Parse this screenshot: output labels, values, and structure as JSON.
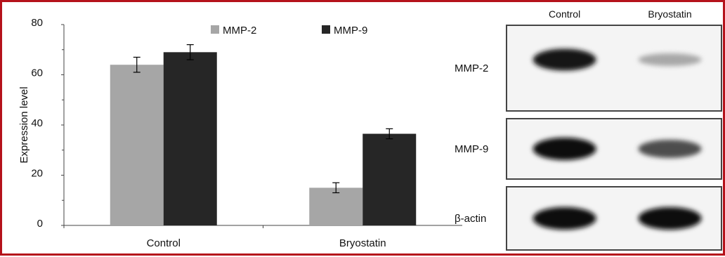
{
  "chart_data": {
    "type": "bar",
    "categories": [
      "Control",
      "Bryostatin"
    ],
    "ylabel": "Expression level",
    "ylim": [
      0,
      80
    ],
    "yticks": [
      0,
      20,
      40,
      60,
      80
    ],
    "legend_position": "top-center",
    "grid": false,
    "series": [
      {
        "name": "MMP-2",
        "color": "#a6a6a6",
        "values": [
          64,
          15
        ],
        "errors": [
          3,
          2
        ]
      },
      {
        "name": "MMP-9",
        "color": "#262626",
        "values": [
          69,
          36.5
        ],
        "errors": [
          3,
          2
        ]
      }
    ]
  },
  "blot": {
    "columns": [
      "Control",
      "Bryostatin"
    ],
    "rows": [
      {
        "label": "MMP-2",
        "intensity": [
          0.95,
          0.3
        ]
      },
      {
        "label": "MMP-9",
        "intensity": [
          1.0,
          0.7
        ]
      },
      {
        "label": "β-actin",
        "intensity": [
          1.0,
          1.0
        ]
      }
    ]
  },
  "colors": {
    "border": "#b5121b"
  }
}
